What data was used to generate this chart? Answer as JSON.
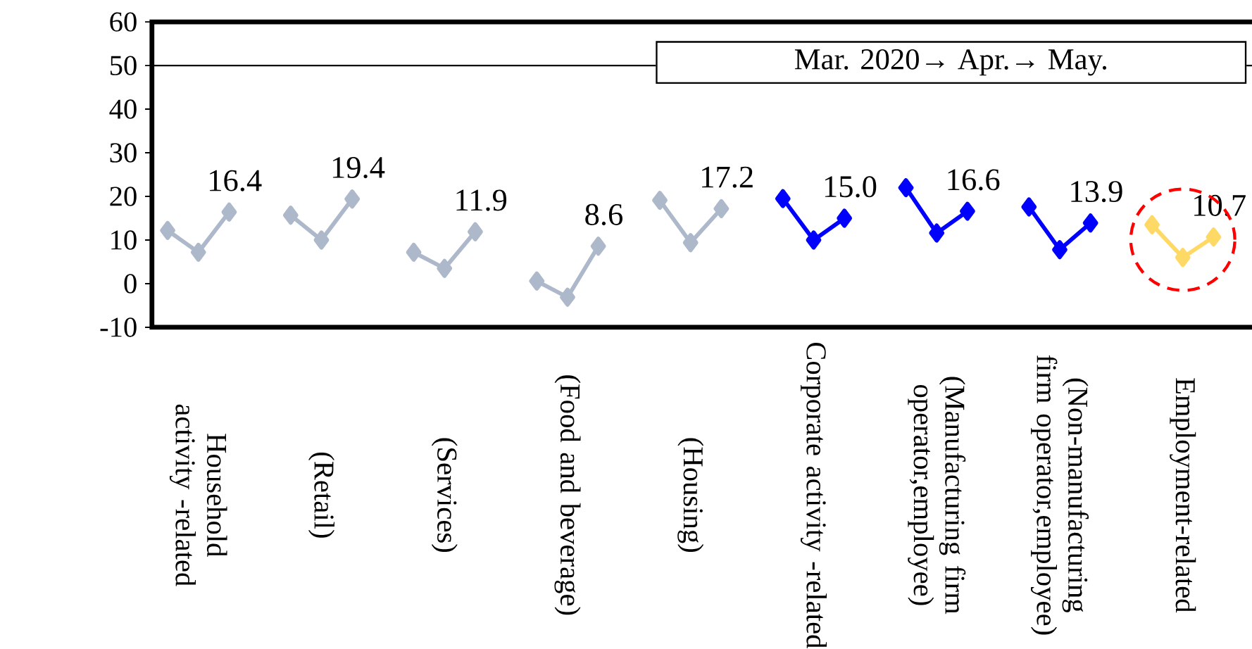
{
  "chart_data": {
    "type": "line",
    "categories": [
      null,
      "Household activity -related",
      null,
      null,
      null,
      "(Retail)",
      null,
      null,
      null,
      "(Services)",
      null,
      null,
      null,
      "(Food and beverage)",
      null,
      null,
      null,
      "(Housing)",
      null,
      null,
      null,
      "Corporate activity -related",
      null,
      null,
      null,
      "(Manufacturing firm operator,employee)",
      null,
      null,
      null,
      "(Non-manufacturing firm operator,employee)",
      null,
      null,
      null,
      "Employment-related",
      null
    ],
    "series": [
      {
        "color": "#adb9ca",
        "values": [
          12.2,
          7.2,
          16.4,
          null,
          null,
          null,
          null,
          null,
          null,
          null,
          null,
          null,
          null,
          null,
          null,
          null,
          null,
          null,
          null,
          null,
          null,
          null,
          null,
          null,
          null,
          null,
          null,
          null,
          null,
          null,
          null,
          null,
          null,
          null,
          null
        ],
        "value_labels": [
          null,
          null,
          "16.4",
          null,
          null,
          null,
          null,
          null,
          null,
          null,
          null,
          null,
          null,
          null,
          null,
          null,
          null,
          null,
          null,
          null,
          null,
          null,
          null,
          null,
          null,
          null,
          null,
          null,
          null,
          null,
          null,
          null,
          null,
          null,
          null
        ]
      },
      {
        "color": "#adb9ca",
        "values": [
          null,
          null,
          null,
          null,
          15.7,
          10.0,
          19.4,
          null,
          null,
          null,
          null,
          null,
          null,
          null,
          null,
          null,
          null,
          null,
          null,
          null,
          null,
          null,
          null,
          null,
          null,
          null,
          null,
          null,
          null,
          null,
          null,
          null,
          null,
          null,
          null
        ],
        "value_labels": [
          null,
          null,
          null,
          null,
          null,
          null,
          "19.4",
          null,
          null,
          null,
          null,
          null,
          null,
          null,
          null,
          null,
          null,
          null,
          null,
          null,
          null,
          null,
          null,
          null,
          null,
          null,
          null,
          null,
          null,
          null,
          null,
          null,
          null,
          null,
          null
        ]
      },
      {
        "color": "#adb9ca",
        "values": [
          null,
          null,
          null,
          null,
          null,
          null,
          null,
          null,
          7.2,
          3.5,
          11.9,
          null,
          null,
          null,
          null,
          null,
          null,
          null,
          null,
          null,
          null,
          null,
          null,
          null,
          null,
          null,
          null,
          null,
          null,
          null,
          null,
          null,
          null,
          null,
          null
        ],
        "value_labels": [
          null,
          null,
          null,
          null,
          null,
          null,
          null,
          null,
          null,
          null,
          "11.9",
          null,
          null,
          null,
          null,
          null,
          null,
          null,
          null,
          null,
          null,
          null,
          null,
          null,
          null,
          null,
          null,
          null,
          null,
          null,
          null,
          null,
          null,
          null,
          null
        ]
      },
      {
        "color": "#adb9ca",
        "values": [
          null,
          null,
          null,
          null,
          null,
          null,
          null,
          null,
          null,
          null,
          null,
          null,
          0.6,
          -3.1,
          8.6,
          null,
          null,
          null,
          null,
          null,
          null,
          null,
          null,
          null,
          null,
          null,
          null,
          null,
          null,
          null,
          null,
          null,
          null,
          null,
          null
        ],
        "value_labels": [
          null,
          null,
          null,
          null,
          null,
          null,
          null,
          null,
          null,
          null,
          null,
          null,
          null,
          null,
          "8.6",
          null,
          null,
          null,
          null,
          null,
          null,
          null,
          null,
          null,
          null,
          null,
          null,
          null,
          null,
          null,
          null,
          null,
          null,
          null,
          null
        ]
      },
      {
        "color": "#adb9ca",
        "values": [
          null,
          null,
          null,
          null,
          null,
          null,
          null,
          null,
          null,
          null,
          null,
          null,
          null,
          null,
          null,
          null,
          19.1,
          9.4,
          17.2,
          null,
          null,
          null,
          null,
          null,
          null,
          null,
          null,
          null,
          null,
          null,
          null,
          null,
          null,
          null,
          null
        ],
        "value_labels": [
          null,
          null,
          null,
          null,
          null,
          null,
          null,
          null,
          null,
          null,
          null,
          null,
          null,
          null,
          null,
          null,
          null,
          null,
          "17.2",
          null,
          null,
          null,
          null,
          null,
          null,
          null,
          null,
          null,
          null,
          null,
          null,
          null,
          null,
          null,
          null
        ]
      },
      {
        "color": "#0000ff",
        "values": [
          null,
          null,
          null,
          null,
          null,
          null,
          null,
          null,
          null,
          null,
          null,
          null,
          null,
          null,
          null,
          null,
          null,
          null,
          null,
          null,
          19.5,
          10.0,
          15.0,
          null,
          null,
          null,
          null,
          null,
          null,
          null,
          null,
          null,
          null,
          null,
          null
        ],
        "value_labels": [
          null,
          null,
          null,
          null,
          null,
          null,
          null,
          null,
          null,
          null,
          null,
          null,
          null,
          null,
          null,
          null,
          null,
          null,
          null,
          null,
          null,
          null,
          "15.0",
          null,
          null,
          null,
          null,
          null,
          null,
          null,
          null,
          null,
          null,
          null,
          null
        ]
      },
      {
        "color": "#0000ff",
        "values": [
          null,
          null,
          null,
          null,
          null,
          null,
          null,
          null,
          null,
          null,
          null,
          null,
          null,
          null,
          null,
          null,
          null,
          null,
          null,
          null,
          null,
          null,
          null,
          null,
          22.0,
          11.6,
          16.6,
          null,
          null,
          null,
          null,
          null,
          null,
          null,
          null
        ],
        "value_labels": [
          null,
          null,
          null,
          null,
          null,
          null,
          null,
          null,
          null,
          null,
          null,
          null,
          null,
          null,
          null,
          null,
          null,
          null,
          null,
          null,
          null,
          null,
          null,
          null,
          null,
          null,
          "16.6",
          null,
          null,
          null,
          null,
          null,
          null,
          null,
          null
        ]
      },
      {
        "color": "#0000ff",
        "values": [
          null,
          null,
          null,
          null,
          null,
          null,
          null,
          null,
          null,
          null,
          null,
          null,
          null,
          null,
          null,
          null,
          null,
          null,
          null,
          null,
          null,
          null,
          null,
          null,
          null,
          null,
          null,
          null,
          17.6,
          7.8,
          13.9,
          null,
          null,
          null,
          null
        ],
        "value_labels": [
          null,
          null,
          null,
          null,
          null,
          null,
          null,
          null,
          null,
          null,
          null,
          null,
          null,
          null,
          null,
          null,
          null,
          null,
          null,
          null,
          null,
          null,
          null,
          null,
          null,
          null,
          null,
          null,
          null,
          null,
          "13.9",
          null,
          null,
          null,
          null
        ]
      },
      {
        "color": "#ffd966",
        "values": [
          null,
          null,
          null,
          null,
          null,
          null,
          null,
          null,
          null,
          null,
          null,
          null,
          null,
          null,
          null,
          null,
          null,
          null,
          null,
          null,
          null,
          null,
          null,
          null,
          null,
          null,
          null,
          null,
          null,
          null,
          null,
          null,
          13.5,
          6.0,
          10.7
        ],
        "value_labels": [
          null,
          null,
          null,
          null,
          null,
          null,
          null,
          null,
          null,
          null,
          null,
          null,
          null,
          null,
          null,
          null,
          null,
          null,
          null,
          null,
          null,
          null,
          null,
          null,
          null,
          null,
          null,
          null,
          null,
          null,
          null,
          null,
          null,
          null,
          "10.7"
        ]
      }
    ],
    "ylim": [
      -10,
      60
    ],
    "yticks": [
      -10,
      0,
      10,
      20,
      30,
      40,
      50,
      60
    ],
    "ref_lines": [
      {
        "axis": "y",
        "value": 50,
        "color": "#000000"
      }
    ],
    "annotations": [
      "Mar. 2020→ Apr.→ May."
    ],
    "marker": "diamond",
    "line_style": "solid"
  }
}
